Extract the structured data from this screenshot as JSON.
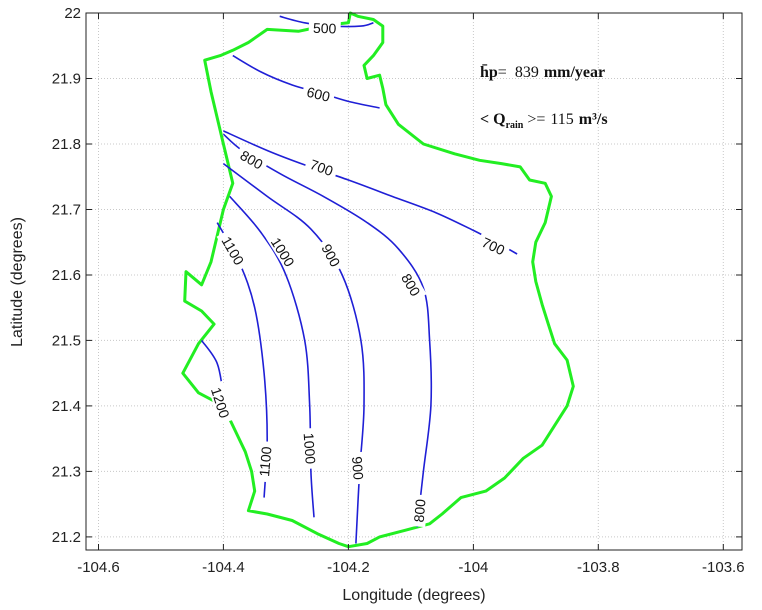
{
  "chart_data": {
    "type": "line",
    "title": "",
    "xlabel": "Longitude (degrees)",
    "ylabel": "Latitude (degrees)",
    "xlim": [
      -104.62,
      -103.57
    ],
    "ylim": [
      21.18,
      22.0
    ],
    "xticks": [
      -104.6,
      -104.4,
      -104.2,
      -104.0,
      -103.8,
      -103.6
    ],
    "xtick_labels": [
      "-104.6",
      "-104.4",
      "-104.2",
      "-104",
      "-103.8",
      "-103.6"
    ],
    "yticks": [
      21.2,
      21.3,
      21.4,
      21.5,
      21.6,
      21.7,
      21.8,
      21.9,
      22.0
    ],
    "ytick_labels": [
      "21.2",
      "21.3",
      "21.4",
      "21.5",
      "21.6",
      "21.7",
      "21.8",
      "21.9",
      "22"
    ],
    "grid": true,
    "colors": {
      "contour": "#1f1fd6",
      "boundary": "#22ee22"
    },
    "annotations": [
      {
        "key": "hp",
        "prefix": "h̄p",
        "suffix": "=",
        "value": "839",
        "unit": "mm/year"
      },
      {
        "key": "q",
        "prefix": "< Q",
        "sub": "rain",
        "suffix": " >=",
        "value": "115",
        "unit": "m³/s"
      }
    ],
    "boundary": [
      [
        -104.197,
        22.0
      ],
      [
        -104.2,
        21.985
      ],
      [
        -104.22,
        21.983
      ],
      [
        -104.25,
        21.978
      ],
      [
        -104.28,
        21.972
      ],
      [
        -104.33,
        21.975
      ],
      [
        -104.36,
        21.955
      ],
      [
        -104.385,
        21.943
      ],
      [
        -104.405,
        21.935
      ],
      [
        -104.43,
        21.928
      ],
      [
        -104.42,
        21.88
      ],
      [
        -104.4,
        21.8
      ],
      [
        -104.385,
        21.74
      ],
      [
        -104.4,
        21.7
      ],
      [
        -104.41,
        21.66
      ],
      [
        -104.42,
        21.62
      ],
      [
        -104.435,
        21.585
      ],
      [
        -104.46,
        21.605
      ],
      [
        -104.462,
        21.56
      ],
      [
        -104.435,
        21.545
      ],
      [
        -104.415,
        21.525
      ],
      [
        -104.44,
        21.495
      ],
      [
        -104.465,
        21.45
      ],
      [
        -104.44,
        21.42
      ],
      [
        -104.4,
        21.4
      ],
      [
        -104.38,
        21.36
      ],
      [
        -104.365,
        21.33
      ],
      [
        -104.355,
        21.3
      ],
      [
        -104.35,
        21.27
      ],
      [
        -104.36,
        21.24
      ],
      [
        -104.33,
        21.235
      ],
      [
        -104.29,
        21.225
      ],
      [
        -104.25,
        21.205
      ],
      [
        -104.215,
        21.19
      ],
      [
        -104.2,
        21.185
      ],
      [
        -104.17,
        21.19
      ],
      [
        -104.15,
        21.2
      ],
      [
        -104.11,
        21.21
      ],
      [
        -104.07,
        21.22
      ],
      [
        -104.05,
        21.235
      ],
      [
        -104.02,
        21.26
      ],
      [
        -103.98,
        21.27
      ],
      [
        -103.95,
        21.29
      ],
      [
        -103.92,
        21.32
      ],
      [
        -103.89,
        21.34
      ],
      [
        -103.87,
        21.37
      ],
      [
        -103.85,
        21.4
      ],
      [
        -103.84,
        21.43
      ],
      [
        -103.85,
        21.47
      ],
      [
        -103.87,
        21.495
      ],
      [
        -103.88,
        21.525
      ],
      [
        -103.89,
        21.555
      ],
      [
        -103.9,
        21.59
      ],
      [
        -103.905,
        21.62
      ],
      [
        -103.9,
        21.65
      ],
      [
        -103.885,
        21.68
      ],
      [
        -103.875,
        21.72
      ],
      [
        -103.885,
        21.74
      ],
      [
        -103.91,
        21.745
      ],
      [
        -103.925,
        21.765
      ],
      [
        -103.955,
        21.77
      ],
      [
        -103.99,
        21.775
      ],
      [
        -104.03,
        21.785
      ],
      [
        -104.08,
        21.8
      ],
      [
        -104.12,
        21.83
      ],
      [
        -104.14,
        21.86
      ],
      [
        -104.145,
        21.885
      ],
      [
        -104.15,
        21.905
      ],
      [
        -104.17,
        21.9
      ],
      [
        -104.175,
        21.92
      ],
      [
        -104.16,
        21.935
      ],
      [
        -104.145,
        21.955
      ],
      [
        -104.145,
        21.98
      ],
      [
        -104.16,
        21.99
      ],
      [
        -104.185,
        21.995
      ],
      [
        -104.197,
        22.0
      ]
    ],
    "contours": [
      {
        "level": "500",
        "points": [
          [
            -104.31,
            21.995
          ],
          [
            -104.27,
            21.985
          ],
          [
            -104.225,
            21.98
          ],
          [
            -104.18,
            21.98
          ],
          [
            -104.16,
            21.985
          ]
        ],
        "labels": [
          {
            "x": -104.238,
            "y": 21.977,
            "angle": 2
          }
        ]
      },
      {
        "level": "600",
        "points": [
          [
            -104.385,
            21.935
          ],
          [
            -104.34,
            21.91
          ],
          [
            -104.29,
            21.89
          ],
          [
            -104.245,
            21.878
          ],
          [
            -104.2,
            21.865
          ],
          [
            -104.15,
            21.855
          ]
        ],
        "labels": [
          {
            "x": -104.248,
            "y": 21.876,
            "angle": 14
          }
        ]
      },
      {
        "level": "700",
        "points": [
          [
            -104.4,
            21.82
          ],
          [
            -104.33,
            21.79
          ],
          [
            -104.27,
            21.768
          ],
          [
            -104.2,
            21.745
          ],
          [
            -104.13,
            21.72
          ],
          [
            -104.06,
            21.695
          ],
          [
            -104.0,
            21.668
          ],
          [
            -103.96,
            21.648
          ],
          [
            -103.93,
            21.632
          ]
        ],
        "labels": [
          {
            "x": -104.243,
            "y": 21.764,
            "angle": 20
          },
          {
            "x": -103.968,
            "y": 21.644,
            "angle": 25
          }
        ]
      },
      {
        "level": "800",
        "points": [
          [
            -104.4,
            21.815
          ],
          [
            -104.37,
            21.79
          ],
          [
            -104.31,
            21.755
          ],
          [
            -104.24,
            21.72
          ],
          [
            -104.17,
            21.68
          ],
          [
            -104.12,
            21.64
          ],
          [
            -104.08,
            21.58
          ],
          [
            -104.07,
            21.5
          ],
          [
            -104.068,
            21.4
          ],
          [
            -104.08,
            21.3
          ],
          [
            -104.09,
            21.215
          ]
        ],
        "labels": [
          {
            "x": -104.355,
            "y": 21.776,
            "angle": 30
          },
          {
            "x": -104.1,
            "y": 21.585,
            "angle": 60
          },
          {
            "x": -104.086,
            "y": 21.24,
            "angle": -85
          }
        ]
      },
      {
        "level": "900",
        "points": [
          [
            -104.4,
            21.77
          ],
          [
            -104.33,
            21.72
          ],
          [
            -104.26,
            21.67
          ],
          [
            -104.21,
            21.6
          ],
          [
            -104.18,
            21.5
          ],
          [
            -104.175,
            21.4
          ],
          [
            -104.182,
            21.3
          ],
          [
            -104.188,
            21.19
          ]
        ],
        "labels": [
          {
            "x": -104.228,
            "y": 21.63,
            "angle": 62
          },
          {
            "x": -104.185,
            "y": 21.305,
            "angle": 86
          }
        ]
      },
      {
        "level": "1000",
        "points": [
          [
            -104.39,
            21.72
          ],
          [
            -104.34,
            21.665
          ],
          [
            -104.3,
            21.6
          ],
          [
            -104.27,
            21.5
          ],
          [
            -104.262,
            21.4
          ],
          [
            -104.26,
            21.3
          ],
          [
            -104.255,
            21.23
          ]
        ],
        "labels": [
          {
            "x": -104.305,
            "y": 21.635,
            "angle": 58
          },
          {
            "x": -104.262,
            "y": 21.335,
            "angle": 86
          }
        ]
      },
      {
        "level": "1100",
        "points": [
          [
            -104.41,
            21.68
          ],
          [
            -104.375,
            21.62
          ],
          [
            -104.35,
            21.55
          ],
          [
            -104.335,
            21.45
          ],
          [
            -104.33,
            21.35
          ],
          [
            -104.335,
            21.26
          ]
        ],
        "labels": [
          {
            "x": -104.385,
            "y": 21.637,
            "angle": 60
          },
          {
            "x": -104.333,
            "y": 21.315,
            "angle": -85
          }
        ]
      },
      {
        "level": "1200",
        "points": [
          [
            -104.435,
            21.5
          ],
          [
            -104.41,
            21.465
          ],
          [
            -104.4,
            21.415
          ],
          [
            -104.395,
            21.38
          ]
        ],
        "labels": [
          {
            "x": -104.405,
            "y": 21.405,
            "angle": 72
          }
        ]
      }
    ]
  }
}
